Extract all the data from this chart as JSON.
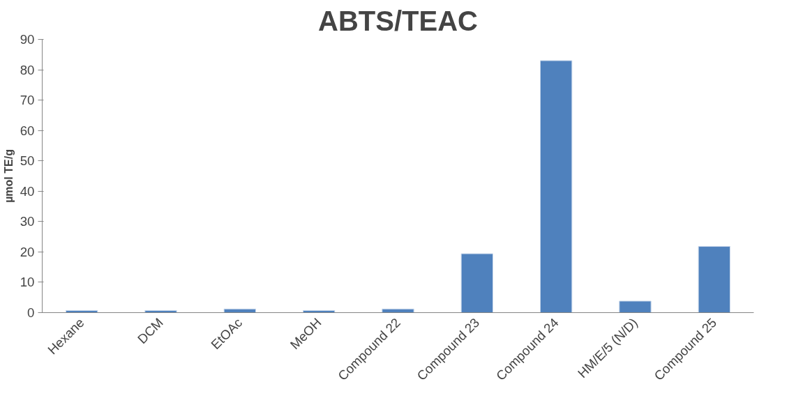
{
  "chart_data": {
    "type": "bar",
    "title": "ABTS/TEAC",
    "ylabel": "µmol TE/g",
    "categories": [
      "Hexane",
      "DCM",
      "EtOAc",
      "MeOH",
      "Compound 22",
      "Compound 23",
      "Compound 24",
      "HM/E/5 (N/D)",
      "Compound 25"
    ],
    "values": [
      0.7,
      0.7,
      1.2,
      0.7,
      1.2,
      19.4,
      83.0,
      3.8,
      21.8
    ],
    "color": "#4f81bd",
    "ylim": [
      0,
      90
    ],
    "yticks": [
      0,
      10,
      20,
      30,
      40,
      50,
      60,
      70,
      80,
      90
    ],
    "grid": false
  }
}
